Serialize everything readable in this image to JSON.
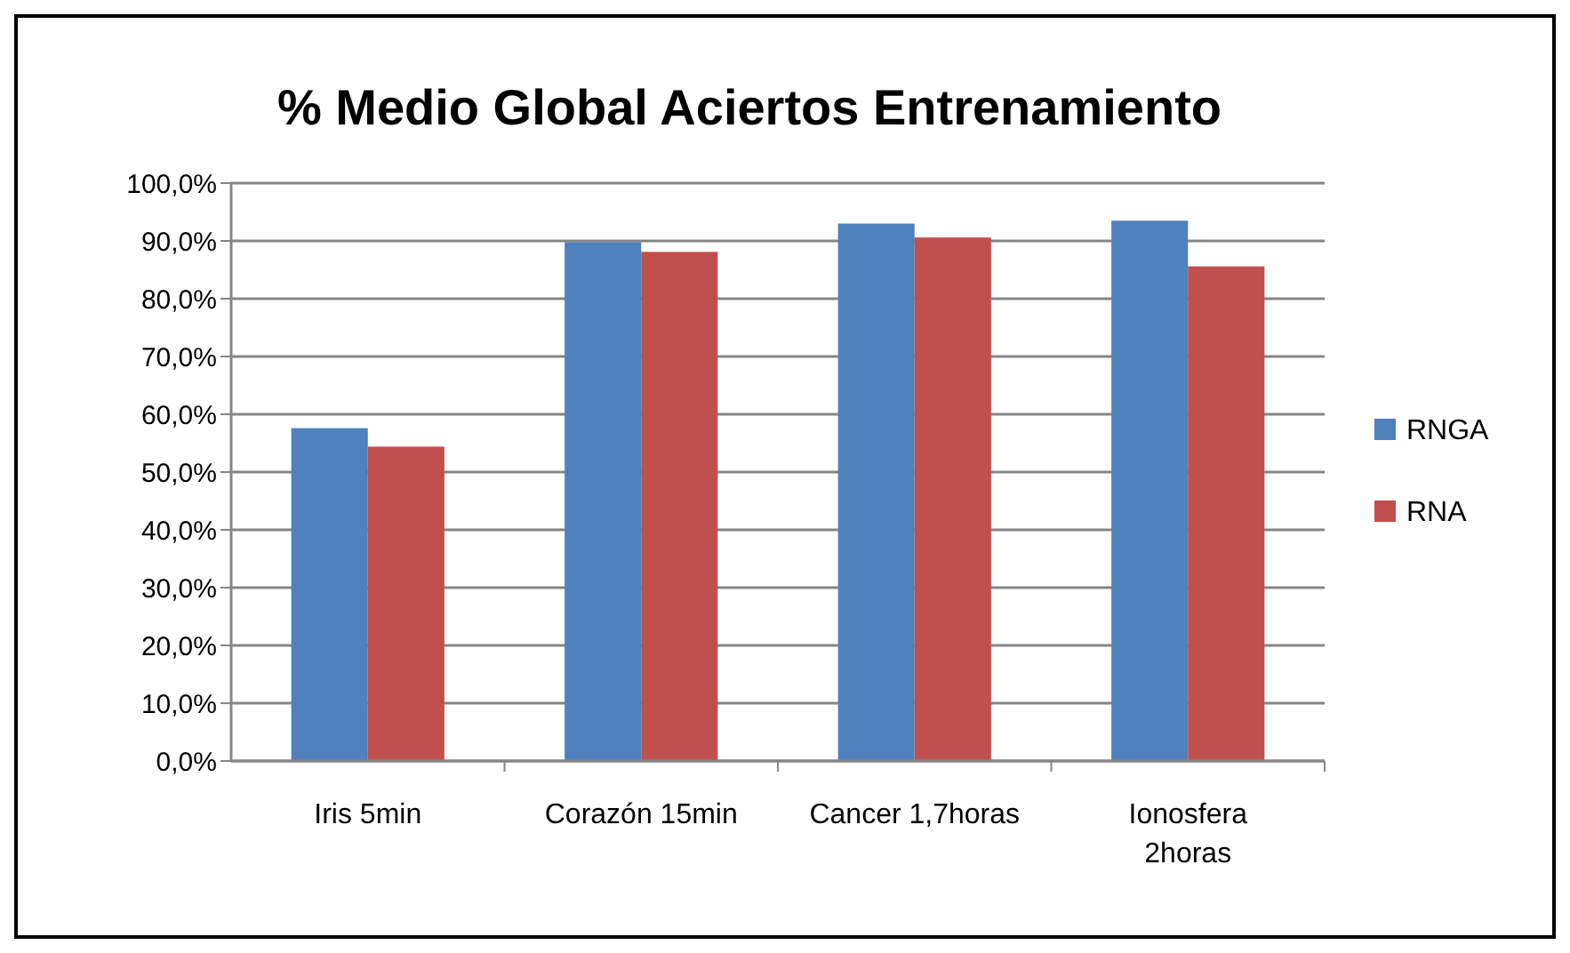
{
  "chart_data": {
    "type": "bar",
    "title": "% Medio Global Aciertos Entrenamiento",
    "categories": [
      "Iris 5min",
      "Corazón 15min",
      "Cancer 1,7horas",
      "Ionosfera 2horas"
    ],
    "series": [
      {
        "name": "RNGA",
        "color": "#4f81bd",
        "values": [
          57.6,
          89.8,
          93.0,
          93.5
        ]
      },
      {
        "name": "RNA",
        "color": "#c0504d",
        "values": [
          54.4,
          88.1,
          90.6,
          85.6
        ]
      }
    ],
    "ylim": [
      0,
      100
    ],
    "yticks": [
      {
        "value": 0,
        "label": "0,0%"
      },
      {
        "value": 10,
        "label": "10,0%"
      },
      {
        "value": 20,
        "label": "20,0%"
      },
      {
        "value": 30,
        "label": "30,0%"
      },
      {
        "value": 40,
        "label": "40,0%"
      },
      {
        "value": 50,
        "label": "50,0%"
      },
      {
        "value": 60,
        "label": "60,0%"
      },
      {
        "value": 70,
        "label": "70,0%"
      },
      {
        "value": 80,
        "label": "80,0%"
      },
      {
        "value": 90,
        "label": "90,0%"
      },
      {
        "value": 100,
        "label": "100,0%"
      }
    ],
    "grid": "y",
    "legend": "right"
  }
}
